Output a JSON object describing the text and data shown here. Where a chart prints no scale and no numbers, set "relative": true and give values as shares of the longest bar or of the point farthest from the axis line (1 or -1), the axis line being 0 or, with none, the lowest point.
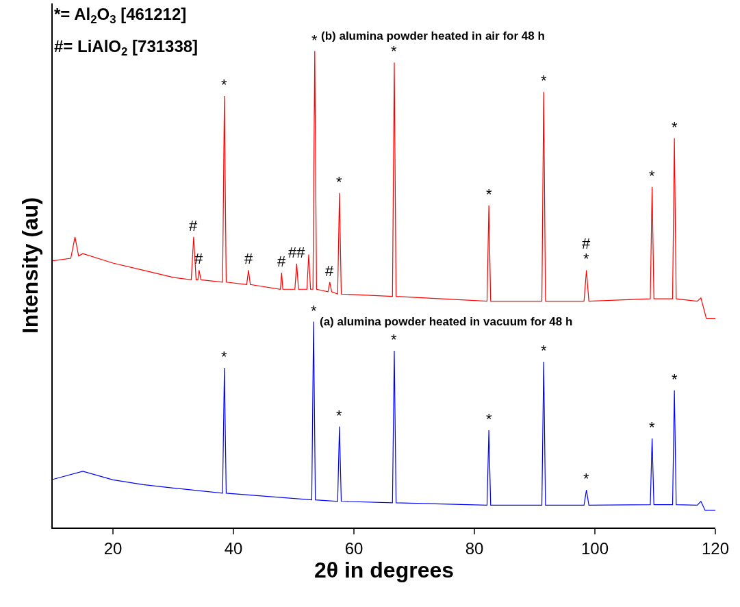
{
  "chart_data": {
    "type": "line",
    "relative": true,
    "xlabel": "2θ in degrees",
    "ylabel": "Intensity (au)",
    "xlim": [
      10,
      120
    ],
    "xticks": [
      20,
      40,
      60,
      80,
      100,
      120
    ],
    "series": [
      {
        "name": "(b) alumina powder heated in air for 48 h",
        "color": "#ff0000",
        "x": [
          10,
          13,
          13.7,
          14.3,
          15,
          20,
          25,
          30,
          33.0,
          33.4,
          33.8,
          34.1,
          34.3,
          34.6,
          38.2,
          38.5,
          38.8,
          42.2,
          42.5,
          42.8,
          47.8,
          48.0,
          48.2,
          50.2,
          50.5,
          50.8,
          52.2,
          52.5,
          52.8,
          53.2,
          53.5,
          53.8,
          55.7,
          56.0,
          56.3,
          57.3,
          57.6,
          57.9,
          66.4,
          66.7,
          67.0,
          82.1,
          82.4,
          82.7,
          91.2,
          91.5,
          91.8,
          98.2,
          98.6,
          99.0,
          109.2,
          109.5,
          109.8,
          112.9,
          113.2,
          113.5,
          117,
          117.6,
          118.5,
          120
        ],
        "values": [
          0.56,
          0.565,
          0.61,
          0.57,
          0.575,
          0.555,
          0.54,
          0.525,
          0.52,
          0.61,
          0.52,
          0.52,
          0.54,
          0.52,
          0.515,
          0.906,
          0.515,
          0.51,
          0.54,
          0.51,
          0.5,
          0.535,
          0.5,
          0.5,
          0.554,
          0.5,
          0.5,
          0.573,
          0.5,
          0.5,
          1.0,
          0.5,
          0.495,
          0.515,
          0.495,
          0.49,
          0.702,
          0.49,
          0.485,
          0.976,
          0.485,
          0.475,
          0.676,
          0.475,
          0.475,
          0.914,
          0.475,
          0.475,
          0.54,
          0.475,
          0.48,
          0.715,
          0.48,
          0.48,
          0.817,
          0.48,
          0.475,
          0.482,
          0.439,
          0.439
        ]
      },
      {
        "name": "(a) alumina powder heated in vacuum for 48 h",
        "color": "#0000ff",
        "x": [
          10,
          15,
          20,
          25,
          30,
          38.2,
          38.5,
          38.8,
          53.0,
          53.3,
          53.6,
          57.3,
          57.6,
          57.9,
          66.4,
          66.7,
          67.0,
          82.1,
          82.4,
          82.7,
          91.2,
          91.5,
          91.8,
          98.2,
          98.6,
          99.0,
          109.2,
          109.5,
          109.8,
          112.9,
          113.2,
          113.5,
          117,
          117.6,
          118.3,
          120
        ],
        "values": [
          0.101,
          0.118,
          0.1,
          0.09,
          0.083,
          0.072,
          0.335,
          0.072,
          0.058,
          0.432,
          0.058,
          0.055,
          0.212,
          0.055,
          0.052,
          0.371,
          0.052,
          0.047,
          0.204,
          0.047,
          0.047,
          0.348,
          0.047,
          0.047,
          0.079,
          0.047,
          0.048,
          0.187,
          0.048,
          0.048,
          0.288,
          0.048,
          0.047,
          0.055,
          0.036,
          0.036
        ]
      }
    ],
    "annotations": [
      "*= Al$_{2}$O$_{3}$ [461212]",
      "#= LiAlO$_{2}$ [731338]",
      {
        "text": "*",
        "x": 38.5,
        "y": 0.906
      },
      {
        "text": "*",
        "x": 53.5,
        "y": 1.0
      },
      {
        "text": "*",
        "x": 57.6,
        "y": 0.702
      },
      {
        "text": "*",
        "x": 66.7,
        "y": 0.976
      },
      {
        "text": "*",
        "x": 82.4,
        "y": 0.676
      },
      {
        "text": "*",
        "x": 91.5,
        "y": 0.914
      },
      {
        "text": "*",
        "x": 98.6,
        "y": 0.54
      },
      {
        "text": "*",
        "x": 109.5,
        "y": 0.715
      },
      {
        "text": "*",
        "x": 113.2,
        "y": 0.817
      },
      {
        "text": "#",
        "x": 33.4,
        "y": 0.61
      },
      {
        "text": "#",
        "x": 34.3,
        "y": 0.54
      },
      {
        "text": "#",
        "x": 42.5,
        "y": 0.54
      },
      {
        "text": "#",
        "x": 48.0,
        "y": 0.535
      },
      {
        "text": "##",
        "x": 50.5,
        "y": 0.554
      },
      {
        "text": "#",
        "x": 56.0,
        "y": 0.515
      },
      {
        "text": "#",
        "x": 98.6,
        "y": 0.54
      },
      {
        "text": "*",
        "x": 38.5,
        "y": 0.335
      },
      {
        "text": "*",
        "x": 53.3,
        "y": 0.432
      },
      {
        "text": "*",
        "x": 57.6,
        "y": 0.212
      },
      {
        "text": "*",
        "x": 66.7,
        "y": 0.371
      },
      {
        "text": "*",
        "x": 82.4,
        "y": 0.204
      },
      {
        "text": "*",
        "x": 91.5,
        "y": 0.348
      },
      {
        "text": "*",
        "x": 98.6,
        "y": 0.079
      },
      {
        "text": "*",
        "x": 109.5,
        "y": 0.187
      },
      {
        "text": "*",
        "x": 113.2,
        "y": 0.288
      }
    ]
  }
}
